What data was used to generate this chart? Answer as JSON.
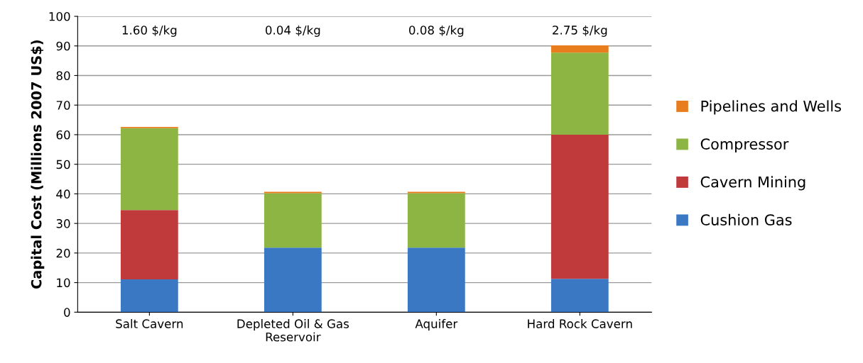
{
  "chart_data": {
    "type": "bar",
    "stacked": true,
    "ylabel": "Capital Cost (Millions 2007 US$)",
    "categories": [
      "Salt Cavern",
      "Depleted Oil & Gas\nReservoir",
      "Aquifer",
      "Hard Rock Cavern"
    ],
    "series": [
      {
        "name": "Cushion Gas",
        "color": "#3a78c4",
        "values": [
          11.1,
          21.8,
          21.8,
          11.3
        ]
      },
      {
        "name": "Cavern Mining",
        "color": "#c0393b",
        "values": [
          23.4,
          0,
          0,
          48.7
        ]
      },
      {
        "name": "Compressor",
        "color": "#8db543",
        "values": [
          27.7,
          18.4,
          18.4,
          27.7
        ]
      },
      {
        "name": "Pipelines and Wells",
        "color": "#e87d1e",
        "values": [
          0.4,
          0.5,
          0.5,
          2.5
        ]
      }
    ],
    "annotations": [
      "1.60 $/kg",
      "0.04 $/kg",
      "0.08 $/kg",
      "2.75 $/kg"
    ],
    "ylim": [
      0,
      100
    ],
    "yticks": [
      0,
      10,
      20,
      30,
      40,
      50,
      60,
      70,
      80,
      90,
      100
    ],
    "grid": "y",
    "legend": "right"
  }
}
